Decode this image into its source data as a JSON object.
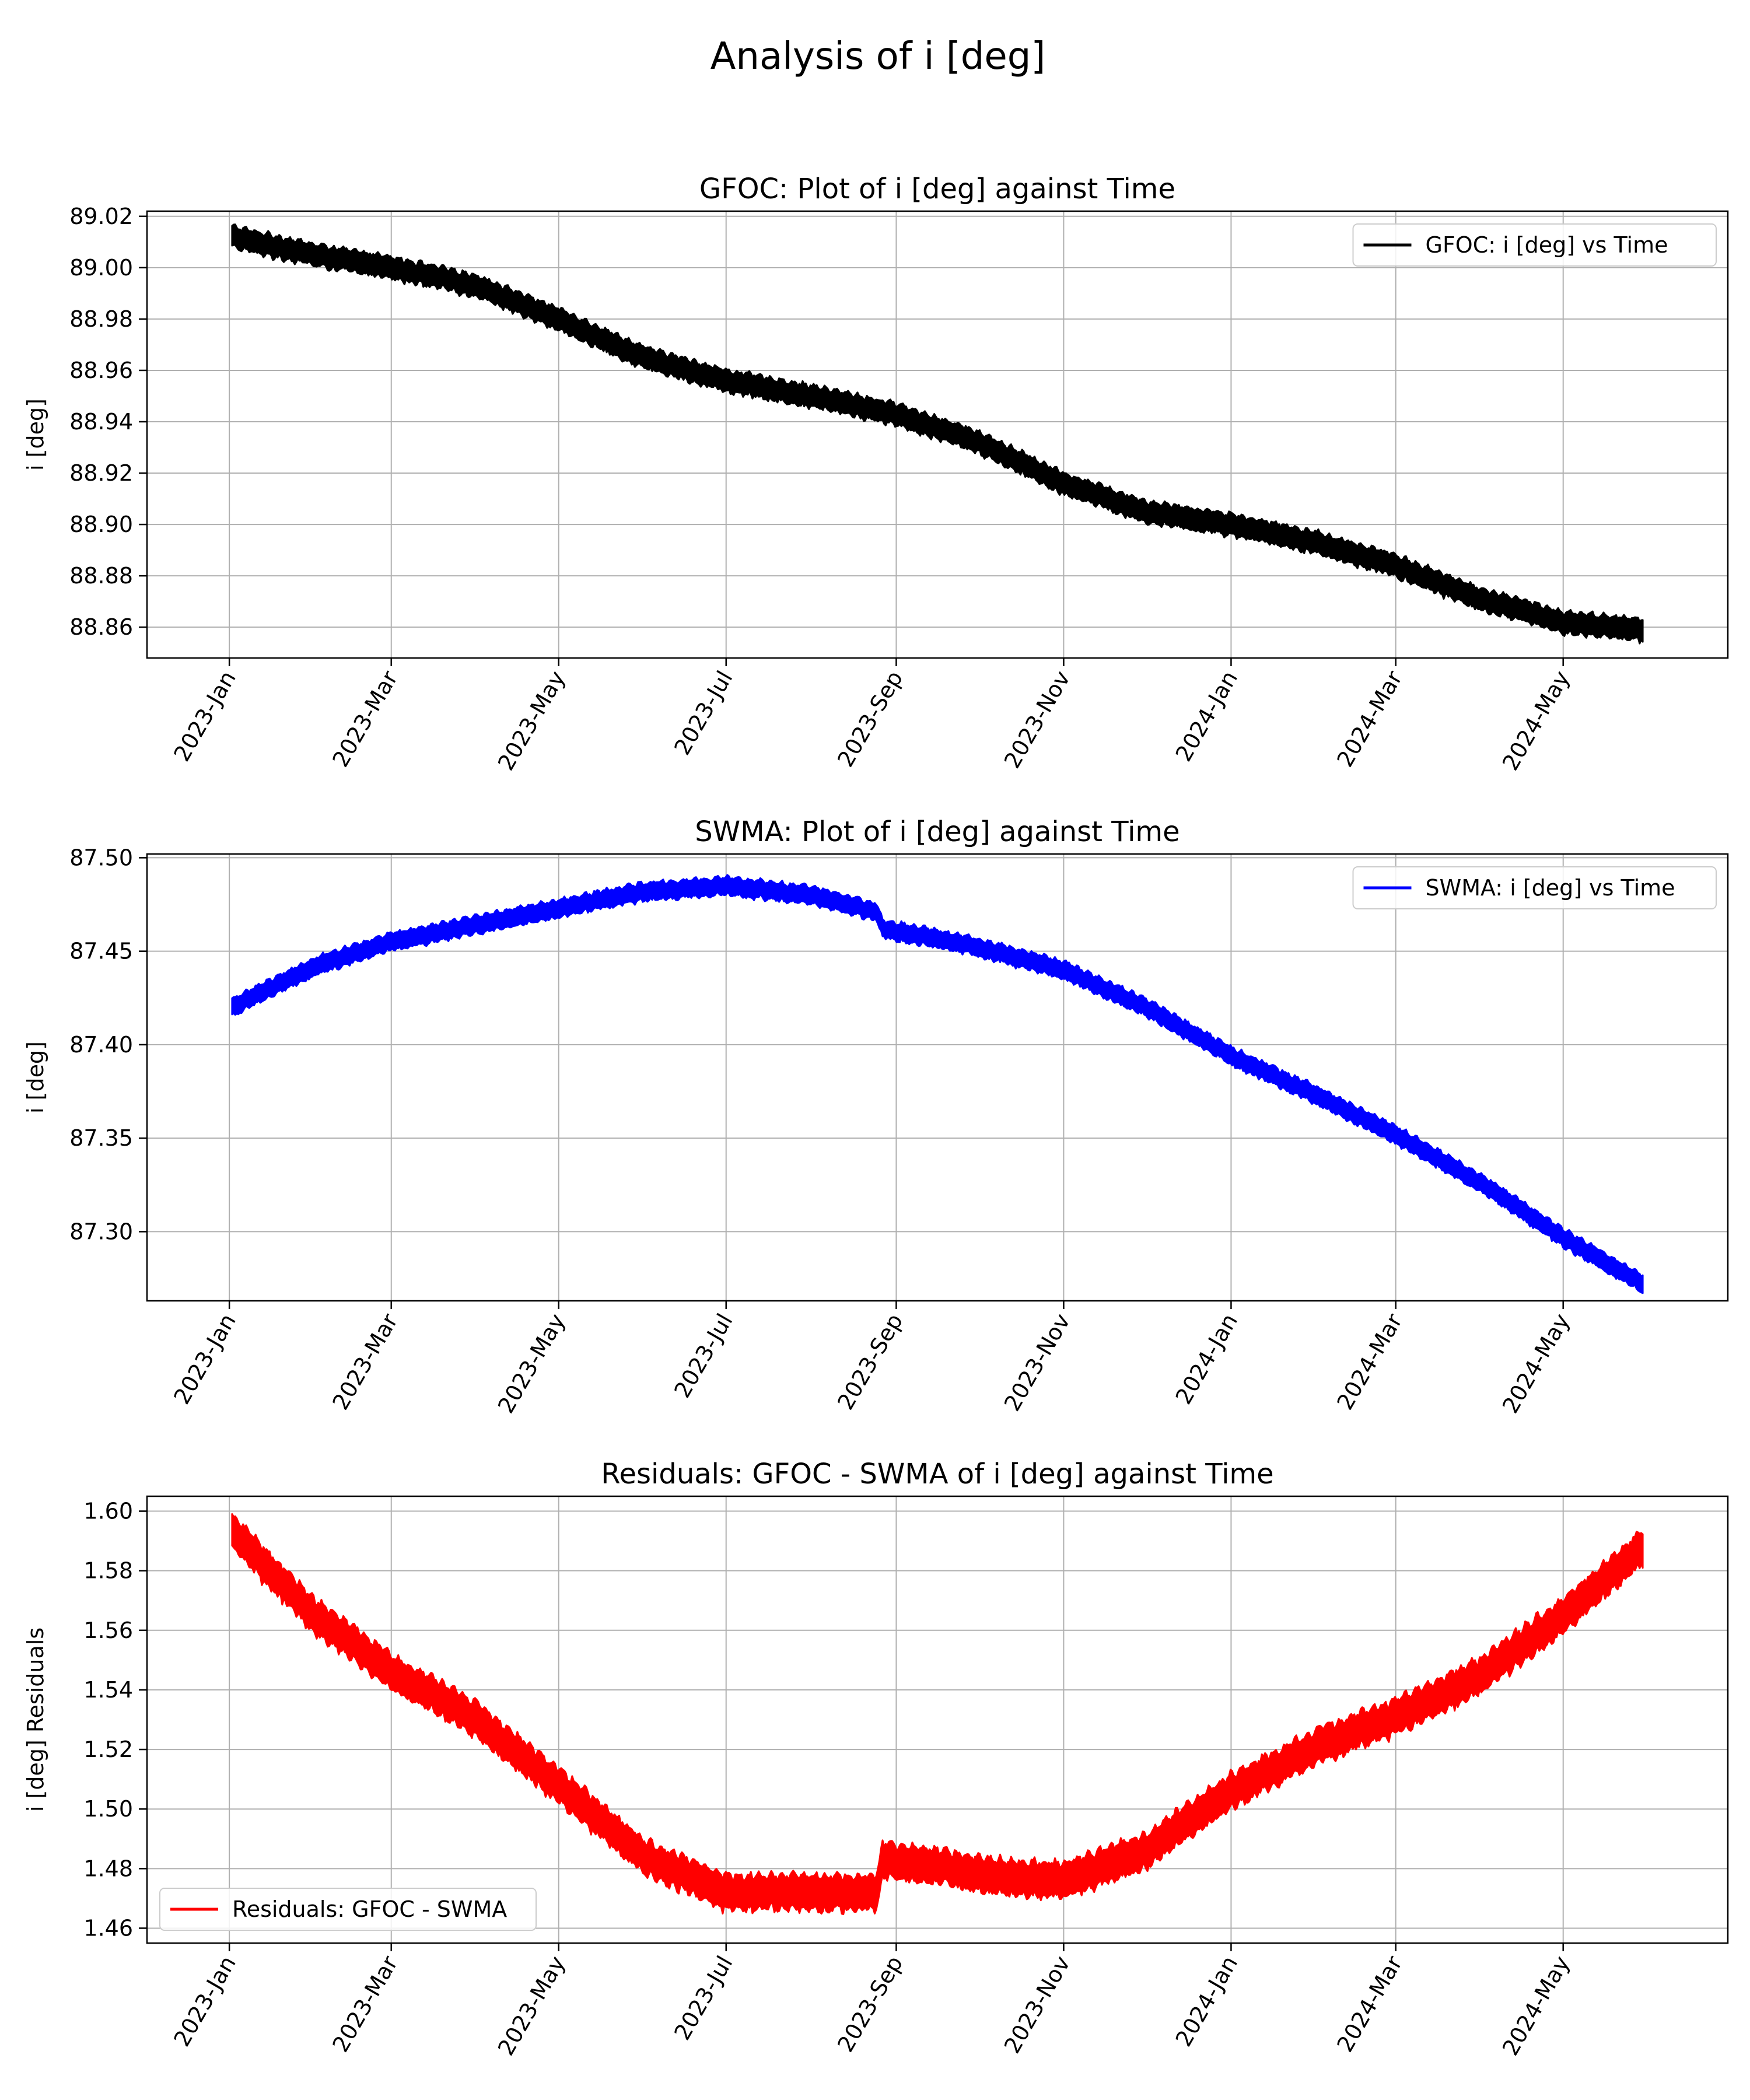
{
  "figure": {
    "suptitle": "Analysis of i [deg]"
  },
  "chart_data": [
    {
      "type": "line",
      "title": "GFOC: Plot of i [deg] against Time",
      "xlabel": "",
      "ylabel": "i [deg]",
      "xlim": [
        "2022-12-02",
        "2024-06-30"
      ],
      "ylim": [
        88.848,
        89.022
      ],
      "xticks": [
        "2023-01-01",
        "2023-03-01",
        "2023-05-01",
        "2023-07-01",
        "2023-09-01",
        "2023-11-01",
        "2024-01-01",
        "2024-03-01",
        "2024-05-01"
      ],
      "xtick_labels": [
        "2023-Jan",
        "2023-Mar",
        "2023-May",
        "2023-Jul",
        "2023-Sep",
        "2023-Nov",
        "2024-Jan",
        "2024-Mar",
        "2024-May"
      ],
      "yticks": [
        88.86,
        88.88,
        88.9,
        88.92,
        88.94,
        88.96,
        88.98,
        89.0,
        89.02
      ],
      "ytick_labels": [
        "88.86",
        "88.88",
        "88.90",
        "88.92",
        "88.94",
        "88.96",
        "88.98",
        "89.00",
        "89.02"
      ],
      "grid": true,
      "legend_position": "upper right",
      "band_width": 0.008,
      "series": [
        {
          "name": "GFOC: i [deg] vs Time",
          "color": "#000000",
          "x": [
            "2023-01-02",
            "2023-02-01",
            "2023-03-01",
            "2023-04-01",
            "2023-05-01",
            "2023-06-01",
            "2023-07-01",
            "2023-08-01",
            "2023-09-01",
            "2023-10-01",
            "2023-11-01",
            "2023-12-01",
            "2024-01-01",
            "2024-02-01",
            "2024-03-01",
            "2024-04-01",
            "2024-05-01",
            "2024-05-30"
          ],
          "y": [
            89.012,
            89.005,
            89.0,
            88.993,
            88.98,
            88.965,
            88.956,
            88.95,
            88.943,
            88.932,
            88.916,
            88.905,
            88.9,
            88.893,
            88.884,
            88.871,
            88.862,
            88.859
          ]
        }
      ]
    },
    {
      "type": "line",
      "title": "SWMA: Plot of i [deg] against Time",
      "xlabel": "",
      "ylabel": "i [deg]",
      "xlim": [
        "2022-12-02",
        "2024-06-30"
      ],
      "ylim": [
        87.263,
        87.502
      ],
      "xticks": [
        "2023-01-01",
        "2023-03-01",
        "2023-05-01",
        "2023-07-01",
        "2023-09-01",
        "2023-11-01",
        "2024-01-01",
        "2024-03-01",
        "2024-05-01"
      ],
      "xtick_labels": [
        "2023-Jan",
        "2023-Mar",
        "2023-May",
        "2023-Jul",
        "2023-Sep",
        "2023-Nov",
        "2024-Jan",
        "2024-Mar",
        "2024-May"
      ],
      "yticks": [
        87.3,
        87.35,
        87.4,
        87.45,
        87.5
      ],
      "ytick_labels": [
        "87.30",
        "87.35",
        "87.40",
        "87.45",
        "87.50"
      ],
      "grid": true,
      "legend_position": "upper right",
      "band_width": 0.009,
      "series": [
        {
          "name": "SWMA: i [deg] vs Time",
          "color": "#0000ff",
          "x": [
            "2023-01-02",
            "2023-02-01",
            "2023-03-01",
            "2023-04-01",
            "2023-05-01",
            "2023-06-01",
            "2023-07-01",
            "2023-08-01",
            "2023-08-25",
            "2023-08-27",
            "2023-09-15",
            "2023-10-01",
            "2023-11-01",
            "2023-12-01",
            "2024-01-01",
            "2024-02-01",
            "2024-03-01",
            "2024-04-01",
            "2024-05-01",
            "2024-05-30"
          ],
          "y": [
            87.42,
            87.442,
            87.455,
            87.464,
            87.473,
            87.482,
            87.485,
            87.48,
            87.471,
            87.462,
            87.457,
            87.452,
            87.44,
            87.42,
            87.394,
            87.373,
            87.352,
            87.326,
            87.297,
            87.272
          ]
        }
      ]
    },
    {
      "type": "line",
      "title": "Residuals: GFOC - SWMA of i [deg] against Time",
      "xlabel": "",
      "ylabel": "i [deg] Residuals",
      "xlim": [
        "2022-12-02",
        "2024-06-30"
      ],
      "ylim": [
        1.455,
        1.605
      ],
      "xticks": [
        "2023-01-01",
        "2023-03-01",
        "2023-05-01",
        "2023-07-01",
        "2023-09-01",
        "2023-11-01",
        "2024-01-01",
        "2024-03-01",
        "2024-05-01"
      ],
      "xtick_labels": [
        "2023-Jan",
        "2023-Mar",
        "2023-May",
        "2023-Jul",
        "2023-Sep",
        "2023-Nov",
        "2024-Jan",
        "2024-Mar",
        "2024-May"
      ],
      "yticks": [
        1.46,
        1.48,
        1.5,
        1.52,
        1.54,
        1.56,
        1.58,
        1.6
      ],
      "ytick_labels": [
        "1.46",
        "1.48",
        "1.50",
        "1.52",
        "1.54",
        "1.56",
        "1.58",
        "1.60"
      ],
      "grid": true,
      "legend_position": "lower left",
      "band_width": 0.011,
      "series": [
        {
          "name": "Residuals: GFOC - SWMA",
          "color": "#ff0000",
          "x": [
            "2023-01-02",
            "2023-02-01",
            "2023-03-01",
            "2023-04-01",
            "2023-05-01",
            "2023-06-01",
            "2023-07-01",
            "2023-08-01",
            "2023-08-25",
            "2023-08-27",
            "2023-09-15",
            "2023-10-01",
            "2023-11-01",
            "2023-12-01",
            "2024-01-01",
            "2024-02-01",
            "2024-03-01",
            "2024-04-01",
            "2024-05-01",
            "2024-05-30"
          ],
          "y": [
            1.593,
            1.565,
            1.546,
            1.53,
            1.508,
            1.484,
            1.472,
            1.472,
            1.472,
            1.483,
            1.481,
            1.478,
            1.476,
            1.486,
            1.506,
            1.521,
            1.531,
            1.545,
            1.565,
            1.588
          ]
        }
      ]
    }
  ]
}
